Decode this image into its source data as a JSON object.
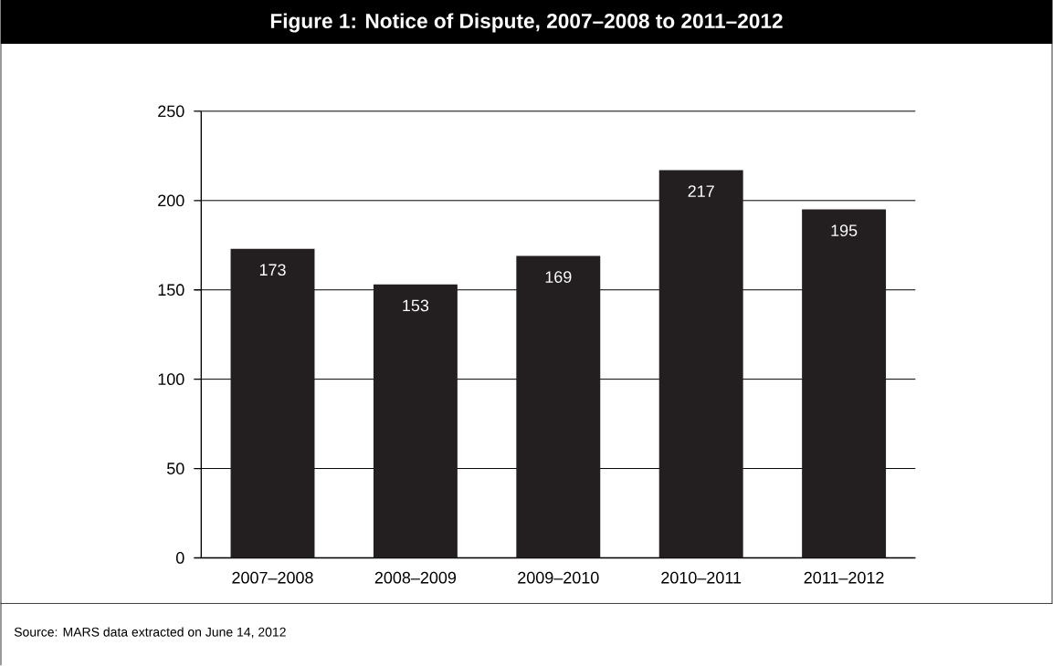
{
  "chart_data": {
    "type": "bar",
    "title": "Figure 1: Notice of Dispute, 2007–2008 to 2011–2012",
    "categories": [
      "2007–2008",
      "2008–2009",
      "2009–2010",
      "2010–2011",
      "2011–2012"
    ],
    "values": [
      173,
      153,
      169,
      217,
      195
    ],
    "color": "#231f20",
    "ylim": [
      0,
      250
    ],
    "yticks": [
      0,
      50,
      100,
      150,
      200,
      250
    ],
    "grid": "y",
    "data_labels": true,
    "annotations": [
      "Source: MARS data extracted on June 14, 2012"
    ]
  }
}
